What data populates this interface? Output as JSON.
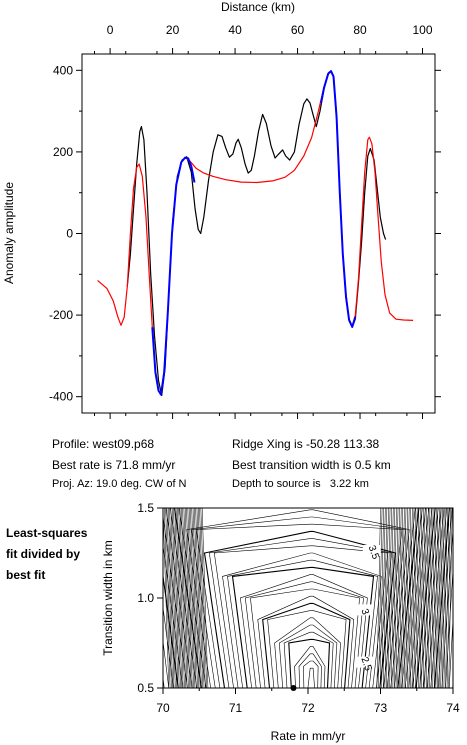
{
  "profile_info": {
    "profile": "Profile: west09.p68",
    "ridge": "Ridge Xing is -50.28 113.38",
    "best_rate": "Best rate is 71.8 mm/yr",
    "best_width": "Best transition width is 0.5 km",
    "azimuth": "Proj. Az: 19.0 deg. CW of N",
    "depth": "Depth to source is   3.22 km"
  },
  "side_label": [
    "Least-squares",
    "fit divided by",
    "best fit"
  ],
  "chart_data": [
    {
      "type": "line",
      "title": "",
      "xlabel": "Distance (km)",
      "ylabel": "Anomaly amplitude",
      "xlim": [
        -9,
        104
      ],
      "ylim": [
        -440,
        440
      ],
      "x_ticks": [
        0,
        20,
        40,
        60,
        80,
        100
      ],
      "y_ticks": [
        -400,
        -200,
        0,
        200,
        400
      ],
      "x_axis_position": "top",
      "grid": false,
      "series": [
        {
          "color": "#000000",
          "style": "observed",
          "points": [
            [
              5.5,
              -130
            ],
            [
              6.5,
              -50
            ],
            [
              7.5,
              60
            ],
            [
              8.5,
              170
            ],
            [
              9.5,
              250
            ],
            [
              10,
              262
            ],
            [
              10.8,
              230
            ],
            [
              11.8,
              100
            ],
            [
              13,
              -100
            ],
            [
              14.2,
              -250
            ],
            [
              15.5,
              -360
            ],
            [
              16.5,
              -397
            ],
            [
              17.6,
              -330
            ],
            [
              18.8,
              -150
            ],
            [
              20,
              30
            ],
            [
              21.5,
              140
            ],
            [
              23,
              180
            ],
            [
              24.5,
              188
            ],
            [
              26,
              150
            ],
            [
              27.2,
              60
            ],
            [
              28.2,
              10
            ],
            [
              29,
              0
            ],
            [
              30,
              40
            ],
            [
              31.5,
              130
            ],
            [
              33,
              200
            ],
            [
              34.5,
              242
            ],
            [
              35.8,
              238
            ],
            [
              37,
              210
            ],
            [
              38.2,
              187
            ],
            [
              39.3,
              195
            ],
            [
              40.3,
              222
            ],
            [
              41,
              231
            ],
            [
              42,
              210
            ],
            [
              43.2,
              170
            ],
            [
              44.2,
              148
            ],
            [
              45.2,
              155
            ],
            [
              46.2,
              190
            ],
            [
              47.5,
              250
            ],
            [
              48.8,
              292
            ],
            [
              50,
              270
            ],
            [
              51.5,
              215
            ],
            [
              52.8,
              185
            ],
            [
              54,
              195
            ],
            [
              55.2,
              205
            ],
            [
              56.2,
              190
            ],
            [
              57.5,
              180
            ],
            [
              59,
              200
            ],
            [
              60.5,
              268
            ],
            [
              62,
              318
            ],
            [
              63,
              330
            ],
            [
              64,
              320
            ],
            [
              65,
              290
            ],
            [
              66,
              262
            ],
            [
              67.2,
              300
            ],
            [
              68.5,
              355
            ],
            [
              69.8,
              390
            ],
            [
              70.7,
              398
            ],
            [
              71.5,
              385
            ],
            [
              72.5,
              280
            ],
            [
              73.5,
              100
            ],
            [
              74.5,
              -50
            ],
            [
              75.5,
              -150
            ],
            [
              76.5,
              -210
            ],
            [
              77.5,
              -230
            ],
            [
              78.5,
              -210
            ],
            [
              79.5,
              -120
            ],
            [
              80.5,
              -20
            ],
            [
              81.5,
              100
            ],
            [
              82.5,
              190
            ],
            [
              83.3,
              208
            ],
            [
              84.5,
              180
            ],
            [
              85.5,
              110
            ],
            [
              86.5,
              40
            ],
            [
              87.5,
              0
            ],
            [
              88.2,
              -15
            ]
          ]
        },
        {
          "color": "#ff0000",
          "style": "model",
          "points": [
            [
              -4,
              -115
            ],
            [
              -1,
              -135
            ],
            [
              1,
              -165
            ],
            [
              2.5,
              -205
            ],
            [
              3.5,
              -225
            ],
            [
              4.5,
              -205
            ],
            [
              5.5,
              -130
            ],
            [
              6.5,
              0
            ],
            [
              7.5,
              110
            ],
            [
              8.5,
              162
            ],
            [
              9.3,
              170
            ],
            [
              10.3,
              140
            ],
            [
              11.5,
              40
            ],
            [
              12.5,
              -100
            ],
            [
              13.5,
              -230
            ],
            [
              14.5,
              -340
            ],
            [
              15.5,
              -385
            ],
            [
              16.3,
              -395
            ],
            [
              17.3,
              -340
            ],
            [
              18.5,
              -190
            ],
            [
              19.8,
              0
            ],
            [
              21.2,
              120
            ],
            [
              22.8,
              175
            ],
            [
              24,
              186
            ],
            [
              25.5,
              178
            ],
            [
              27.5,
              160
            ],
            [
              30,
              148
            ],
            [
              33,
              140
            ],
            [
              37,
              132
            ],
            [
              42,
              126
            ],
            [
              47,
              125
            ],
            [
              52,
              129
            ],
            [
              56,
              138
            ],
            [
              59,
              155
            ],
            [
              62,
              190
            ],
            [
              64.5,
              235
            ],
            [
              66.5,
              295
            ],
            [
              68.5,
              360
            ],
            [
              70,
              395
            ],
            [
              70.8,
              398
            ],
            [
              71.6,
              380
            ],
            [
              72.5,
              290
            ],
            [
              73.5,
              110
            ],
            [
              74.5,
              -50
            ],
            [
              75.5,
              -160
            ],
            [
              76.5,
              -215
            ],
            [
              77.5,
              -228
            ],
            [
              78.5,
              -200
            ],
            [
              79.5,
              -110
            ],
            [
              80.5,
              20
            ],
            [
              81.5,
              150
            ],
            [
              82.5,
              230
            ],
            [
              83,
              236
            ],
            [
              83.8,
              220
            ],
            [
              84.8,
              150
            ],
            [
              85.8,
              40
            ],
            [
              86.8,
              -70
            ],
            [
              88,
              -150
            ],
            [
              89.5,
              -195
            ],
            [
              91.5,
              -210
            ],
            [
              94,
              -212
            ],
            [
              97,
              -213
            ]
          ]
        },
        {
          "color": "#0000ff",
          "style": "fit",
          "segments": [
            [
              [
                13.5,
                -230
              ],
              [
                14.5,
                -340
              ],
              [
                15.5,
                -385
              ],
              [
                16.3,
                -395
              ],
              [
                17.3,
                -340
              ],
              [
                18.5,
                -190
              ],
              [
                19.8,
                0
              ],
              [
                21.2,
                120
              ],
              [
                22.8,
                175
              ],
              [
                24,
                186
              ],
              [
                25,
                184
              ],
              [
                26,
                165
              ],
              [
                27,
                125
              ]
            ],
            [
              [
                67.5,
                320
              ],
              [
                68.5,
                358
              ],
              [
                69.8,
                392
              ],
              [
                70.7,
                398
              ],
              [
                71.5,
                385
              ],
              [
                72.5,
                285
              ],
              [
                73.5,
                105
              ],
              [
                74.5,
                -50
              ],
              [
                75.5,
                -155
              ],
              [
                76.5,
                -212
              ],
              [
                77.5,
                -229
              ],
              [
                78.5,
                -205
              ]
            ]
          ]
        }
      ]
    },
    {
      "type": "contour",
      "title": "",
      "xlabel": "Rate in mm/yr",
      "ylabel": "Transition width in km",
      "xlim": [
        70,
        74
      ],
      "ylim": [
        0.5,
        1.5
      ],
      "x_ticks": [
        70,
        71,
        72,
        73,
        74
      ],
      "y_ticks": [
        0.5,
        1.0,
        1.5
      ],
      "x_tick_labels": [
        "70",
        "71",
        "72",
        "73",
        "74"
      ],
      "y_tick_labels": [
        "0.5",
        "1.0",
        "1.5"
      ],
      "best_fit_point": [
        71.8,
        0.5
      ],
      "contour_labels": [
        {
          "text": "2.5",
          "x": 72.78,
          "y": 0.63
        },
        {
          "text": "3",
          "x": 72.76,
          "y": 0.92
        },
        {
          "text": "3.5",
          "x": 72.88,
          "y": 1.25
        }
      ]
    }
  ]
}
